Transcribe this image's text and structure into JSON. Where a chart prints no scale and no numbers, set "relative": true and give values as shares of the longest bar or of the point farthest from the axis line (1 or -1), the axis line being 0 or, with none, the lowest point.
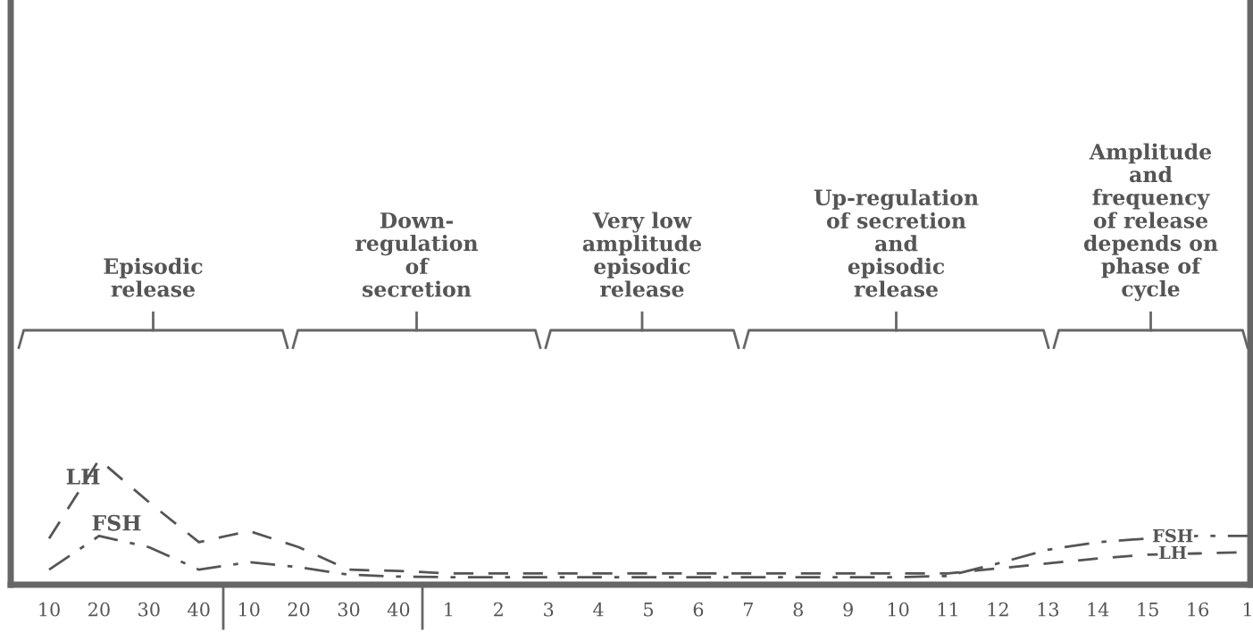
{
  "chart_data": {
    "type": "line",
    "relative": true,
    "categories": [
      "10",
      "20",
      "30",
      "40",
      "10",
      "20",
      "30",
      "40",
      "1",
      "2",
      "3",
      "4",
      "5",
      "6",
      "7",
      "8",
      "9",
      "10",
      "11",
      "12",
      "13",
      "14",
      "15",
      "16",
      "1"
    ],
    "series": [
      {
        "name": "LH",
        "color": "#555555",
        "line_style": "dashed",
        "values": [
          0.37,
          1,
          0.66,
          0.34,
          0.43,
          0.3,
          0.12,
          0.11,
          0.09,
          0.09,
          0.09,
          0.09,
          0.09,
          0.09,
          0.09,
          0.09,
          0.09,
          0.09,
          0.09,
          0.13,
          0.17,
          0.21,
          0.24,
          0.25,
          0.26
        ]
      },
      {
        "name": "FSH",
        "color": "#555555",
        "line_style": "dashdot",
        "values": [
          0.12,
          0.39,
          0.3,
          0.12,
          0.18,
          0.14,
          0.08,
          0.065,
          0.06,
          0.06,
          0.06,
          0.06,
          0.06,
          0.06,
          0.06,
          0.06,
          0.06,
          0.06,
          0.07,
          0.17,
          0.28,
          0.34,
          0.37,
          0.39,
          0.39
        ]
      }
    ],
    "annotations": [
      "Episodic\nrelease",
      "Down-\nregulation\nof\nsecretion",
      "Very low\namplitude\nepisodic\nrelease",
      "Up-regulation\nof secretion\nand\nepisodic\nrelease",
      "Amplitude\nand\nfrequency\nof release\ndepends on\nphase of\ncycle"
    ],
    "grid": false,
    "legend": false
  }
}
